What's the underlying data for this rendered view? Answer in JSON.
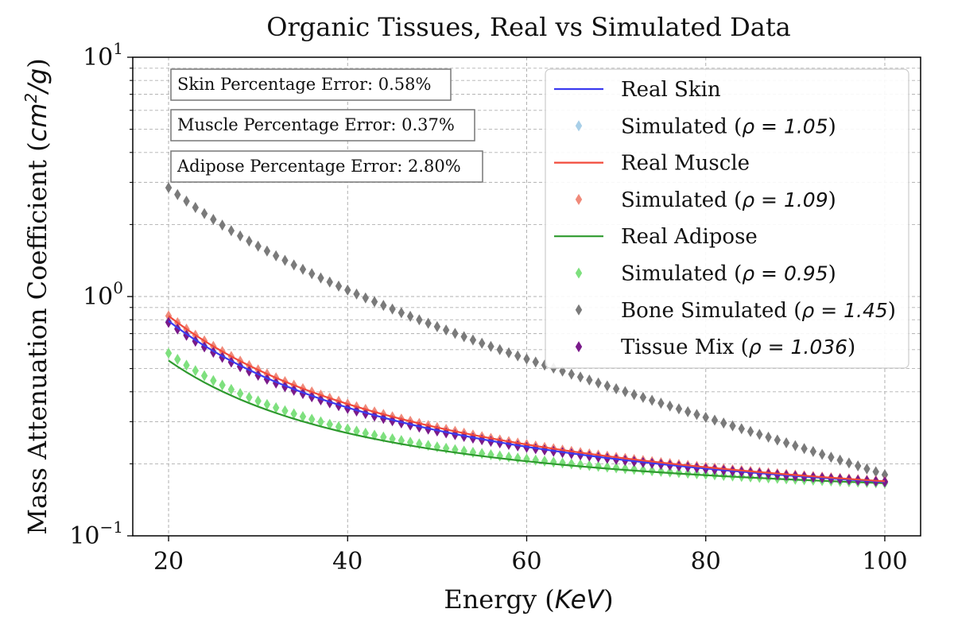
{
  "chart_data": {
    "type": "scatter",
    "title": "Organic Tissues, Real vs Simulated Data",
    "xlabel_text": "Energy (",
    "xlabel_math": "KeV",
    "xlabel_close": ")",
    "ylabel_text": "Mass Attenuation Coefficient (",
    "ylabel_math": "cm",
    "ylabel_sup": "2",
    "ylabel_math2": "/g",
    "ylabel_close": ")",
    "x_scale": "linear",
    "y_scale": "log",
    "xlim": [
      16,
      104
    ],
    "ylim": [
      0.1,
      10
    ],
    "x_ticks": [
      20,
      40,
      60,
      80,
      100
    ],
    "x_tick_labels": [
      "20",
      "40",
      "60",
      "80",
      "100"
    ],
    "y_ticks": [
      0.1,
      1,
      10
    ],
    "y_tick_labels": [
      {
        "base": "10",
        "exp": "−1"
      },
      {
        "base": "10",
        "exp": "0"
      },
      {
        "base": "10",
        "exp": "1"
      }
    ],
    "grid": true,
    "legend_position": "top-right",
    "annotations": [
      "Skin Percentage Error: 0.58%",
      "Muscle Percentage Error: 0.37%",
      "Adipose Percentage Error: 2.80%"
    ],
    "x_points": [
      20,
      21,
      22,
      23,
      24,
      25,
      26,
      27,
      28,
      29,
      30,
      31,
      32,
      33,
      34,
      35,
      36,
      37,
      38,
      39,
      40,
      41,
      42,
      43,
      44,
      45,
      46,
      47,
      48,
      49,
      50,
      51,
      52,
      53,
      54,
      55,
      56,
      57,
      58,
      59,
      60,
      61,
      62,
      63,
      64,
      65,
      66,
      67,
      68,
      69,
      70,
      71,
      72,
      73,
      74,
      75,
      76,
      77,
      78,
      79,
      80,
      81,
      82,
      83,
      84,
      85,
      86,
      87,
      88,
      89,
      90,
      91,
      92,
      93,
      94,
      95,
      96,
      97,
      98,
      99,
      100
    ],
    "model": {
      "description_of_series": "values at 20 keV, 100 keV and curve shape read from the figure",
      "series": [
        {
          "name": "Real Skin",
          "legend_text": "Real Skin",
          "kind": "line",
          "color": "#3b3bf0",
          "v20": 0.79,
          "v100": 0.168,
          "p": 1.55
        },
        {
          "name": "Simulated (ρ = 1.05)",
          "legend_text": "Simulated (",
          "legend_math": "ρ = 1.05",
          "kind": "diamond",
          "color": "#a8cfe8",
          "v20": 0.79,
          "v100": 0.168,
          "p": 1.55
        },
        {
          "name": "Real Muscle",
          "legend_text": "Real Muscle",
          "kind": "line",
          "color": "#f24a3a",
          "v20": 0.83,
          "v100": 0.169,
          "p": 1.55
        },
        {
          "name": "Simulated (ρ = 1.09)",
          "legend_text": "Simulated (",
          "legend_math": "ρ = 1.09",
          "kind": "diamond",
          "color": "#f08a7a",
          "v20": 0.83,
          "v100": 0.169,
          "p": 1.55
        },
        {
          "name": "Real Adipose",
          "legend_text": "Real Adipose",
          "kind": "line",
          "color": "#2e9a2e",
          "v20": 0.54,
          "v100": 0.166,
          "p": 1.6
        },
        {
          "name": "Simulated (ρ = 0.95)",
          "legend_text": "Simulated (",
          "legend_math": "ρ = 0.95",
          "kind": "diamond",
          "color": "#7ee07e",
          "v20": 0.58,
          "v100": 0.166,
          "p": 1.6
        },
        {
          "name": "Bone Simulated (ρ = 1.45)",
          "legend_text": "Bone Simulated (",
          "legend_math": "ρ = 1.45",
          "kind": "diamond",
          "color": "#7a7a7a",
          "v20": 2.85,
          "v100": 0.18,
          "p": 1.25
        },
        {
          "name": "Tissue Mix (ρ = 1.036)",
          "legend_text": "Tissue Mix (",
          "legend_math": "ρ = 1.036",
          "kind": "diamond",
          "color": "#7a1a8a",
          "v20": 0.78,
          "v100": 0.168,
          "p": 1.55
        }
      ]
    }
  }
}
